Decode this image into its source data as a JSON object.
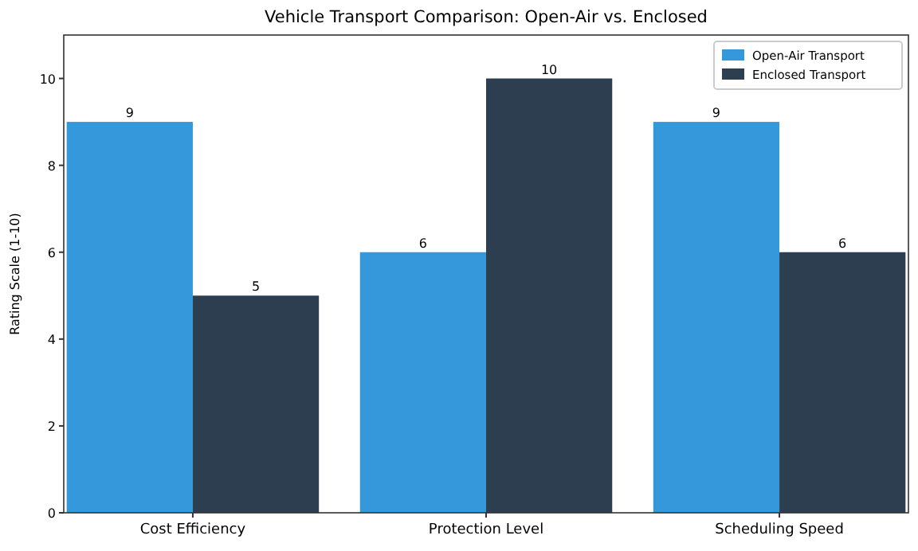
{
  "chart_data": {
    "type": "bar",
    "title": "Vehicle Transport Comparison: Open-Air vs. Enclosed",
    "ylabel": "Rating Scale (1-10)",
    "categories": [
      "Cost Efficiency",
      "Protection Level",
      "Scheduling Speed"
    ],
    "series": [
      {
        "name": "Open-Air Transport",
        "color": "#3498db",
        "values": [
          9,
          6,
          9
        ]
      },
      {
        "name": "Enclosed Transport",
        "color": "#2c3e50",
        "values": [
          5,
          10,
          6
        ]
      }
    ],
    "ylim": [
      0,
      11
    ],
    "yticks": [
      0,
      2,
      4,
      6,
      8,
      10
    ],
    "legend": "top right",
    "data_labels": true
  }
}
